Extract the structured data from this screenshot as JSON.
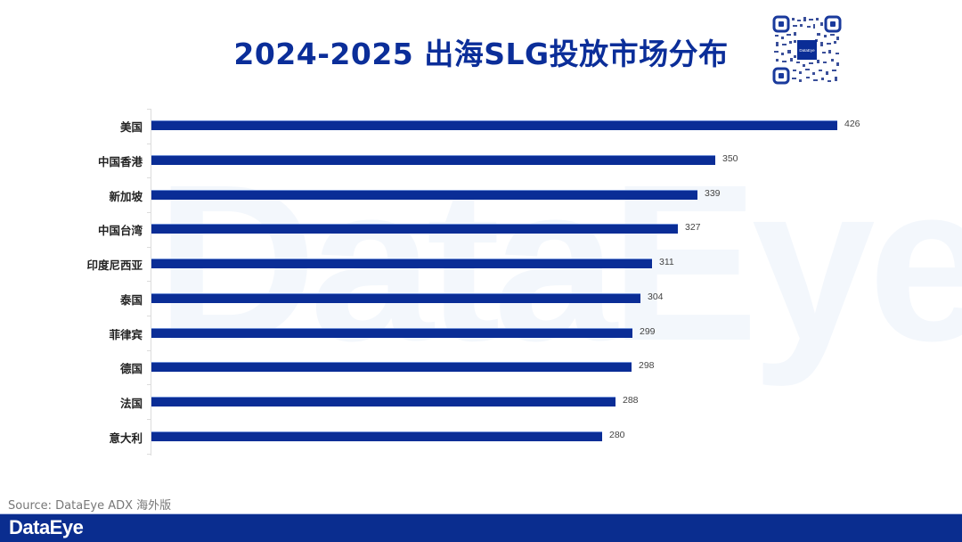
{
  "header": {
    "title": "2024-2025 出海SLG投放市场分布",
    "qr_icon": "qr-code-icon"
  },
  "watermark": {
    "text": "DataEye"
  },
  "chart_data": {
    "type": "bar",
    "orientation": "horizontal",
    "title": "2024-2025 出海SLG投放市场分布",
    "xlabel": "",
    "ylabel": "",
    "categories": [
      "美国",
      "中国香港",
      "新加坡",
      "中国台湾",
      "印度尼西亚",
      "泰国",
      "菲律宾",
      "德国",
      "法国",
      "意大利"
    ],
    "values": [
      426,
      350,
      339,
      327,
      311,
      304,
      299,
      298,
      288,
      280
    ],
    "data_labels": true,
    "grid": false,
    "legend": null,
    "xlim": [
      0,
      426
    ],
    "bar_color": "#0a2d96"
  },
  "footer": {
    "source": "Source: DataEye ADX 海外版",
    "logo_text": "DataEye",
    "bar_color": "#0a2d8f"
  }
}
